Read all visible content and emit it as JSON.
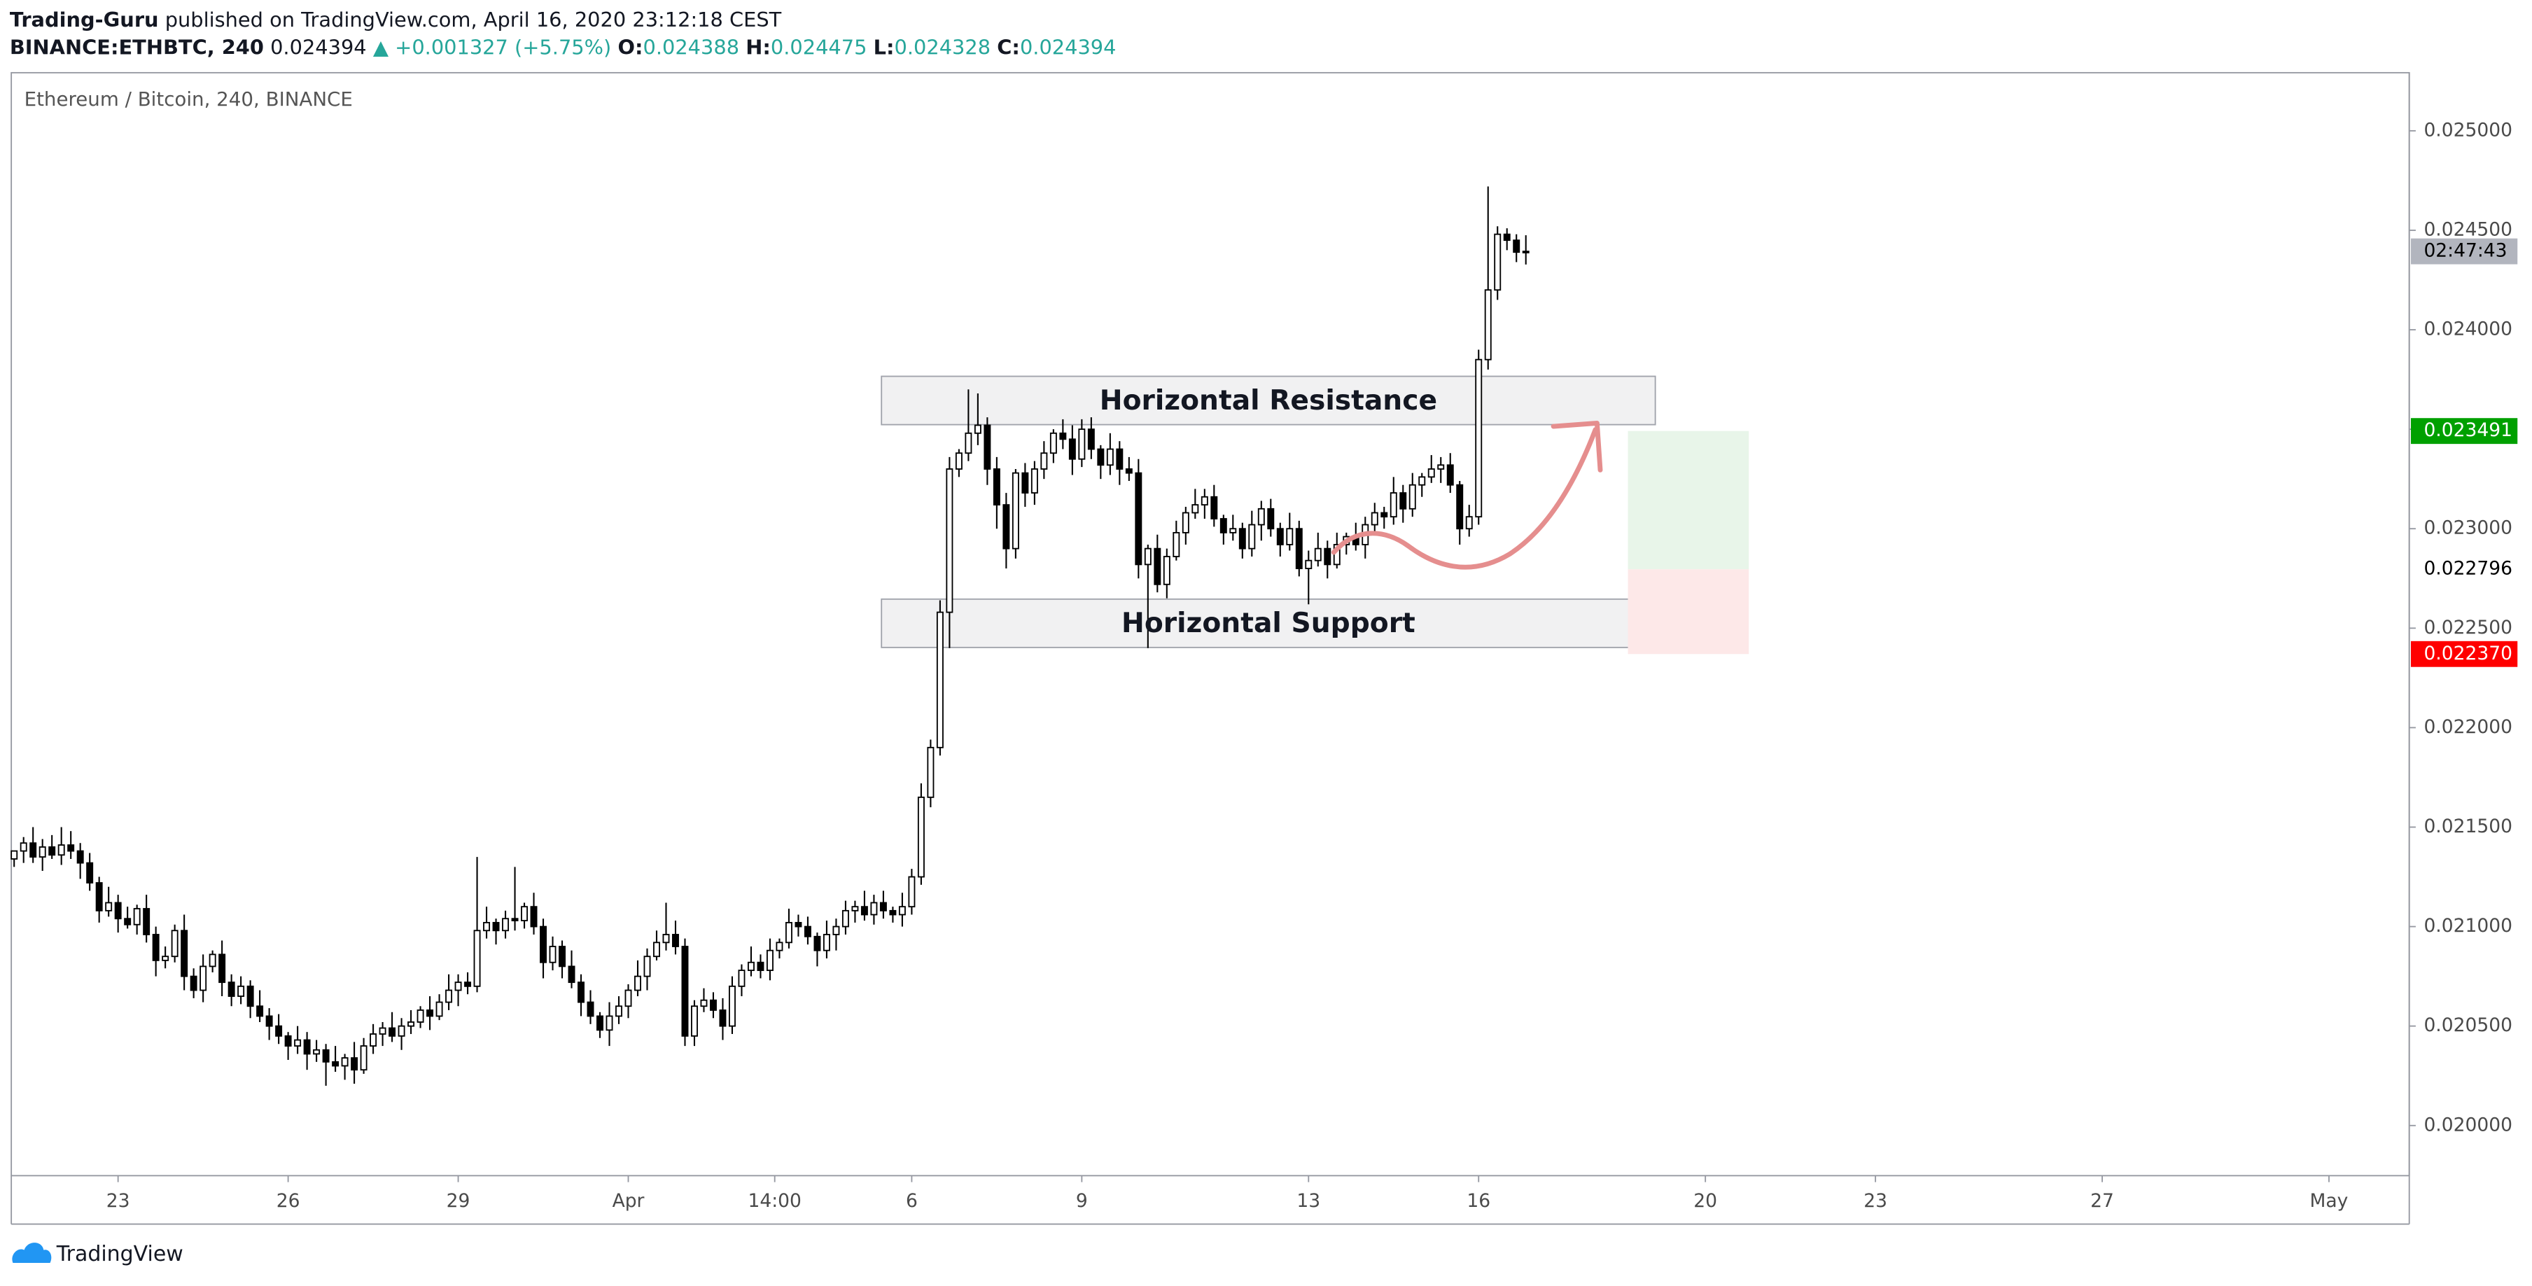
{
  "header": {
    "publisher": "Trading-Guru",
    "published_text": "published on TradingView.com, April 16, 2020 23:12:18 CEST",
    "symbol": "BINANCE:ETHBTC, 240",
    "last": "0.024394",
    "change": "▲ +0.001327 (+5.75%)",
    "o_label": "O:",
    "o": "0.024388",
    "h_label": "H:",
    "h": "0.024475",
    "l_label": "L:",
    "l": "0.024328",
    "c_label": "C:",
    "c": "0.024394"
  },
  "footer": {
    "brand": "TradingView"
  },
  "chart_data": {
    "type": "candlestick",
    "title": "Ethereum / Bitcoin, 240, BINANCE",
    "up_color": "#ffffff",
    "down_color": "#000000",
    "edge_color": "#000000",
    "grid": false,
    "xlim": [
      -0.3,
      253.5
    ],
    "xticks": [
      {
        "value": 11,
        "label": "23"
      },
      {
        "value": 29,
        "label": "26"
      },
      {
        "value": 47,
        "label": "29"
      },
      {
        "value": 65,
        "label": "Apr"
      },
      {
        "value": 80.5,
        "label": "14:00"
      },
      {
        "value": 95,
        "label": "6"
      },
      {
        "value": 113,
        "label": "9"
      },
      {
        "value": 137,
        "label": "13"
      },
      {
        "value": 155,
        "label": "16"
      },
      {
        "value": 179,
        "label": "20"
      },
      {
        "value": 197,
        "label": "23"
      },
      {
        "value": 221,
        "label": "27"
      },
      {
        "value": 245,
        "label": "May"
      }
    ],
    "ylim": [
      0.019748,
      0.025292
    ],
    "yticks": [
      {
        "value": 0.02,
        "label": "0.020000"
      },
      {
        "value": 0.0205,
        "label": "0.020500"
      },
      {
        "value": 0.021,
        "label": "0.021000"
      },
      {
        "value": 0.0215,
        "label": "0.021500"
      },
      {
        "value": 0.022,
        "label": "0.022000"
      },
      {
        "value": 0.0225,
        "label": "0.022500"
      },
      {
        "value": 0.023,
        "label": "0.023000"
      },
      {
        "value": 0.0235,
        "label": "0.023500"
      },
      {
        "value": 0.024,
        "label": "0.024000"
      },
      {
        "value": 0.0245,
        "label": "0.024500"
      },
      {
        "value": 0.025,
        "label": "0.025000"
      }
    ],
    "open": [
      0.02134,
      0.02138,
      0.02142,
      0.02135,
      0.0214,
      0.02136,
      0.02141,
      0.02138,
      0.02132,
      0.02122,
      0.02108,
      0.02112,
      0.02104,
      0.02101,
      0.02109,
      0.02096,
      0.02083,
      0.02085,
      0.02098,
      0.02075,
      0.02068,
      0.0208,
      0.02086,
      0.02072,
      0.02065,
      0.0207,
      0.0206,
      0.02055,
      0.0205,
      0.02045,
      0.0204,
      0.02043,
      0.02036,
      0.02038,
      0.02032,
      0.0203,
      0.02034,
      0.02028,
      0.0204,
      0.02046,
      0.02049,
      0.02045,
      0.0205,
      0.02052,
      0.02058,
      0.02055,
      0.02062,
      0.02068,
      0.02072,
      0.0207,
      0.02098,
      0.02102,
      0.02098,
      0.02104,
      0.02103,
      0.0211,
      0.021,
      0.02082,
      0.0209,
      0.0208,
      0.02072,
      0.02062,
      0.02055,
      0.02048,
      0.02055,
      0.0206,
      0.02068,
      0.02075,
      0.02085,
      0.02092,
      0.02096,
      0.0209,
      0.02045,
      0.0206,
      0.02063,
      0.02058,
      0.0205,
      0.0207,
      0.02078,
      0.02082,
      0.02078,
      0.02088,
      0.02092,
      0.02102,
      0.021,
      0.02095,
      0.02088,
      0.02096,
      0.021,
      0.02108,
      0.0211,
      0.02106,
      0.02112,
      0.02108,
      0.02106,
      0.0211,
      0.02125,
      0.02165,
      0.0219,
      0.02258,
      0.0233,
      0.02338,
      0.02348,
      0.02352,
      0.0233,
      0.02312,
      0.0229,
      0.02328,
      0.02318,
      0.0233,
      0.02338,
      0.02348,
      0.02345,
      0.02335,
      0.0235,
      0.0234,
      0.02332,
      0.0234,
      0.0233,
      0.02328,
      0.02282,
      0.0229,
      0.02272,
      0.02286,
      0.02298,
      0.02308,
      0.02312,
      0.02316,
      0.02305,
      0.02298,
      0.023,
      0.0229,
      0.02302,
      0.0231,
      0.023,
      0.02292,
      0.023,
      0.0228,
      0.02284,
      0.0229,
      0.02282,
      0.02292,
      0.02296,
      0.02292,
      0.02302,
      0.02308,
      0.02306,
      0.02318,
      0.0231,
      0.02322,
      0.02326,
      0.0233,
      0.02332,
      0.02322,
      0.023,
      0.02306,
      0.02385,
      0.0242,
      0.02448,
      0.02445,
      0.024388
    ],
    "high": [
      0.02138,
      0.02145,
      0.0215,
      0.02144,
      0.02146,
      0.0215,
      0.02148,
      0.02142,
      0.02137,
      0.02125,
      0.0212,
      0.02116,
      0.0211,
      0.02111,
      0.02116,
      0.021,
      0.0209,
      0.02101,
      0.02106,
      0.02079,
      0.02086,
      0.02088,
      0.02093,
      0.02076,
      0.02075,
      0.02073,
      0.02068,
      0.02059,
      0.02056,
      0.02047,
      0.0205,
      0.02047,
      0.02043,
      0.02041,
      0.0204,
      0.02036,
      0.02042,
      0.02044,
      0.02051,
      0.02052,
      0.02057,
      0.02054,
      0.02058,
      0.0206,
      0.02065,
      0.02066,
      0.02076,
      0.02076,
      0.02077,
      0.02135,
      0.0211,
      0.02104,
      0.02108,
      0.0213,
      0.02112,
      0.02117,
      0.02104,
      0.02095,
      0.02093,
      0.02088,
      0.02076,
      0.02068,
      0.02057,
      0.02062,
      0.02065,
      0.02071,
      0.02083,
      0.02089,
      0.02098,
      0.02112,
      0.02103,
      0.02094,
      0.02063,
      0.02069,
      0.02067,
      0.02064,
      0.02075,
      0.02081,
      0.0209,
      0.02086,
      0.02094,
      0.02094,
      0.02109,
      0.02106,
      0.02105,
      0.02097,
      0.02103,
      0.02104,
      0.02113,
      0.02113,
      0.02118,
      0.02116,
      0.02118,
      0.0211,
      0.02117,
      0.02129,
      0.02172,
      0.02194,
      0.02264,
      0.02336,
      0.0234,
      0.0237,
      0.02368,
      0.02356,
      0.02336,
      0.02318,
      0.0233,
      0.02333,
      0.02334,
      0.02344,
      0.0235,
      0.02355,
      0.02352,
      0.02355,
      0.02356,
      0.02342,
      0.02348,
      0.02344,
      0.02336,
      0.02335,
      0.02292,
      0.02297,
      0.0229,
      0.02304,
      0.02311,
      0.0232,
      0.0232,
      0.02322,
      0.02307,
      0.02307,
      0.02303,
      0.02309,
      0.02314,
      0.02315,
      0.02303,
      0.02308,
      0.02304,
      0.02289,
      0.02298,
      0.02294,
      0.02298,
      0.02298,
      0.02303,
      0.02306,
      0.02313,
      0.02311,
      0.02326,
      0.02322,
      0.02328,
      0.02328,
      0.02337,
      0.02336,
      0.02338,
      0.02324,
      0.02312,
      0.0239,
      0.02472,
      0.02452,
      0.02451,
      0.02448,
      0.024475
    ],
    "low": [
      0.0213,
      0.02132,
      0.02132,
      0.02128,
      0.02134,
      0.02131,
      0.02134,
      0.02124,
      0.02118,
      0.02102,
      0.02105,
      0.02097,
      0.02099,
      0.02096,
      0.02092,
      0.02075,
      0.02079,
      0.02082,
      0.02068,
      0.02064,
      0.02062,
      0.02077,
      0.02065,
      0.0206,
      0.02061,
      0.02054,
      0.02052,
      0.02043,
      0.02041,
      0.02033,
      0.02036,
      0.02028,
      0.02032,
      0.0202,
      0.02027,
      0.02023,
      0.02021,
      0.02026,
      0.02036,
      0.0204,
      0.02042,
      0.02038,
      0.02046,
      0.02049,
      0.02048,
      0.02053,
      0.02058,
      0.0206,
      0.02066,
      0.02067,
      0.02094,
      0.02091,
      0.02094,
      0.02098,
      0.02099,
      0.02096,
      0.02074,
      0.02078,
      0.02074,
      0.02069,
      0.02055,
      0.02051,
      0.02044,
      0.0204,
      0.02051,
      0.02054,
      0.02065,
      0.02068,
      0.02083,
      0.02088,
      0.02086,
      0.0204,
      0.0204,
      0.02057,
      0.02054,
      0.02043,
      0.02046,
      0.02065,
      0.02075,
      0.02074,
      0.02073,
      0.02084,
      0.02089,
      0.02095,
      0.02091,
      0.0208,
      0.02084,
      0.02088,
      0.02096,
      0.02102,
      0.02103,
      0.02101,
      0.02104,
      0.02102,
      0.021,
      0.02106,
      0.02121,
      0.0216,
      0.02186,
      0.0224,
      0.02326,
      0.02334,
      0.02342,
      0.02322,
      0.023,
      0.0228,
      0.02285,
      0.02311,
      0.02312,
      0.02325,
      0.02333,
      0.0234,
      0.02327,
      0.02331,
      0.02335,
      0.02325,
      0.02327,
      0.02322,
      0.02324,
      0.02275,
      0.0224,
      0.02268,
      0.02265,
      0.02284,
      0.02292,
      0.02305,
      0.02305,
      0.02301,
      0.02292,
      0.02294,
      0.02285,
      0.02286,
      0.02294,
      0.02296,
      0.02286,
      0.02289,
      0.02276,
      0.02262,
      0.02281,
      0.02275,
      0.0228,
      0.02287,
      0.02289,
      0.02285,
      0.02298,
      0.023,
      0.02302,
      0.02303,
      0.02306,
      0.02316,
      0.02323,
      0.02323,
      0.02318,
      0.02292,
      0.02296,
      0.02302,
      0.0238,
      0.02415,
      0.0244,
      0.02434,
      0.024328
    ],
    "close": [
      0.02138,
      0.02142,
      0.02135,
      0.0214,
      0.02136,
      0.02141,
      0.02138,
      0.02132,
      0.02122,
      0.02108,
      0.02112,
      0.02104,
      0.02101,
      0.02109,
      0.02096,
      0.02083,
      0.02085,
      0.02098,
      0.02075,
      0.02068,
      0.0208,
      0.02086,
      0.02072,
      0.02065,
      0.0207,
      0.0206,
      0.02055,
      0.0205,
      0.02045,
      0.0204,
      0.02043,
      0.02036,
      0.02038,
      0.02032,
      0.0203,
      0.02034,
      0.02028,
      0.0204,
      0.02046,
      0.02049,
      0.02045,
      0.0205,
      0.02052,
      0.02058,
      0.02055,
      0.02062,
      0.02068,
      0.02072,
      0.0207,
      0.02098,
      0.02102,
      0.02098,
      0.02104,
      0.02103,
      0.0211,
      0.021,
      0.02082,
      0.0209,
      0.0208,
      0.02072,
      0.02062,
      0.02055,
      0.02048,
      0.02055,
      0.0206,
      0.02068,
      0.02075,
      0.02085,
      0.02092,
      0.02096,
      0.0209,
      0.02045,
      0.0206,
      0.02063,
      0.02058,
      0.0205,
      0.0207,
      0.02078,
      0.02082,
      0.02078,
      0.02088,
      0.02092,
      0.02102,
      0.021,
      0.02095,
      0.02088,
      0.02096,
      0.021,
      0.02108,
      0.0211,
      0.02106,
      0.02112,
      0.02108,
      0.02106,
      0.0211,
      0.02125,
      0.02165,
      0.0219,
      0.02258,
      0.0233,
      0.02338,
      0.02348,
      0.02352,
      0.0233,
      0.02312,
      0.0229,
      0.02328,
      0.02318,
      0.0233,
      0.02338,
      0.02348,
      0.02345,
      0.02335,
      0.0235,
      0.0234,
      0.02332,
      0.0234,
      0.0233,
      0.02328,
      0.02282,
      0.0229,
      0.02272,
      0.02286,
      0.02298,
      0.02308,
      0.02312,
      0.02316,
      0.02305,
      0.02298,
      0.023,
      0.0229,
      0.02302,
      0.0231,
      0.023,
      0.02292,
      0.023,
      0.0228,
      0.02284,
      0.0229,
      0.02282,
      0.02292,
      0.02296,
      0.02292,
      0.02302,
      0.02308,
      0.02306,
      0.02318,
      0.0231,
      0.02322,
      0.02326,
      0.0233,
      0.02332,
      0.02322,
      0.023,
      0.02306,
      0.02385,
      0.0242,
      0.02448,
      0.02445,
      0.02439,
      0.024394
    ],
    "zones": [
      {
        "label": "Horizontal Resistance",
        "x": [
          91.8,
          173.7
        ],
        "y": [
          0.023523,
          0.023766
        ]
      },
      {
        "label": "Horizontal Support",
        "x": [
          91.8,
          173.7
        ],
        "y": [
          0.022403,
          0.022646
        ]
      }
    ],
    "position": {
      "x": [
        170.8,
        183.6
      ],
      "target": 0.023491,
      "entry": 0.022796,
      "stop": 0.02237,
      "profit_color": "#e8f5e9",
      "loss_color": "#fde8e8"
    },
    "price_labels": [
      {
        "value": 0.024394,
        "label": "02:47:43",
        "color": "#b2b5be",
        "text_color": "#000000"
      },
      {
        "value": 0.023491,
        "label": "0.023491",
        "color": "#00a000",
        "text_color": "#ffffff"
      },
      {
        "value": 0.022796,
        "label": "0.022796",
        "color": "#ffffff",
        "text_color": "#000000"
      },
      {
        "value": 0.02237,
        "label": "0.022370",
        "color": "#ff0000",
        "text_color": "#ffffff"
      }
    ]
  }
}
